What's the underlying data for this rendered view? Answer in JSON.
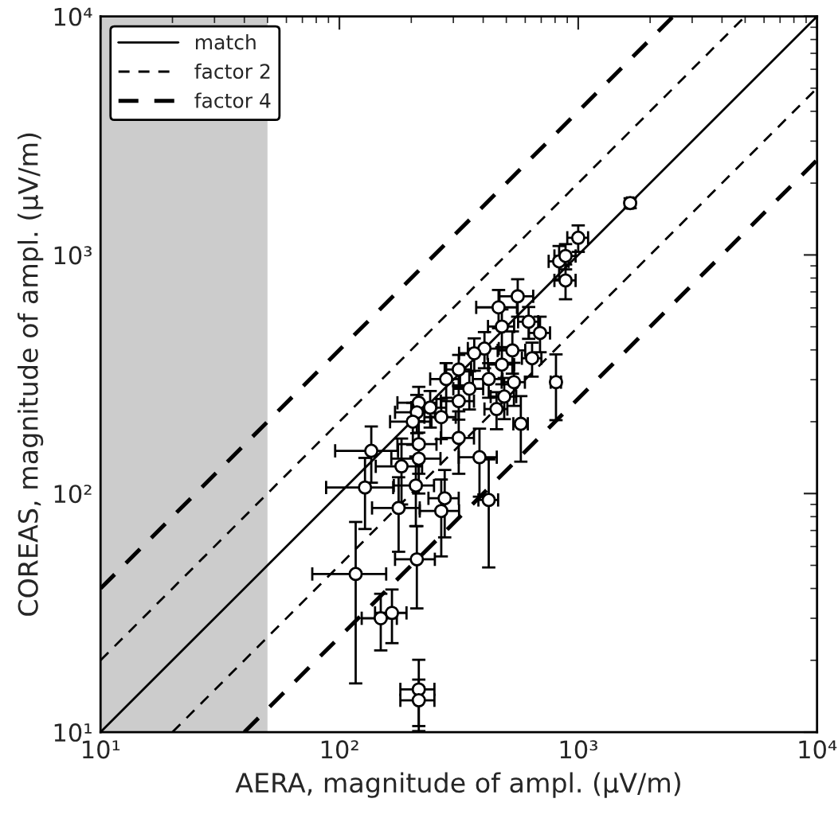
{
  "chart_data": {
    "type": "scatter",
    "xlabel": "AERA, magnitude of ampl. (µV/m)",
    "ylabel": "COREAS, magnitude of ampl. (µV/m)",
    "xlim": [
      10,
      10000
    ],
    "ylim": [
      10,
      10000
    ],
    "log": "xy",
    "xticks": [
      {
        "value": 10,
        "label": "10¹"
      },
      {
        "value": 100,
        "label": "10²"
      },
      {
        "value": 1000,
        "label": "10³"
      },
      {
        "value": 10000,
        "label": "10⁴"
      }
    ],
    "yticks": [
      {
        "value": 10,
        "label": "10¹"
      },
      {
        "value": 100,
        "label": "10²"
      },
      {
        "value": 1000,
        "label": "10³"
      },
      {
        "value": 10000,
        "label": "10⁴"
      }
    ],
    "legend": "top left",
    "grid": false,
    "bands": [
      {
        "axis": "x",
        "from": 10,
        "to": 50,
        "color": "#cccccc"
      }
    ],
    "series": [
      {
        "name": "match",
        "type": "line",
        "color": "#000000",
        "line_style": "solid",
        "x": [
          10,
          10000
        ],
        "values": [
          10,
          10000
        ]
      },
      {
        "name": "factor 2",
        "type": "line",
        "color": "#000000",
        "line_style": "dashed",
        "x": [
          10,
          5000
        ],
        "values": [
          20,
          10000
        ]
      },
      {
        "type": "line",
        "color": "#000000",
        "line_style": "dashed",
        "x": [
          20,
          10000
        ],
        "values": [
          10,
          5000
        ]
      },
      {
        "name": "factor 4",
        "type": "line",
        "color": "#000000",
        "line_style": "dashed",
        "x": [
          10,
          2500
        ],
        "values": [
          40,
          10000
        ]
      },
      {
        "type": "line",
        "color": "#000000",
        "line_style": "dashed",
        "x": [
          40,
          10000
        ],
        "values": [
          10,
          2500
        ]
      },
      {
        "color": "#000000",
        "marker": "circle",
        "x": [
          1650,
          1000,
          832,
          885,
          885,
          692,
          641,
          807,
          620,
          558,
          464,
          479,
          405,
          530,
          479,
          367,
          280,
          316,
          422,
          538,
          350,
          215,
          490,
          455,
          211,
          316,
          240,
          267,
          575,
          203,
          136,
          215,
          316,
          386,
          182,
          215,
          209,
          128,
          276,
          422,
          177,
          267,
          211,
          117,
          149,
          166,
          215,
          215
        ],
        "values": [
          1650,
          1180,
          940,
          990,
          782,
          471,
          369,
          293,
          525,
          671,
          603,
          501,
          405,
          398,
          347,
          387,
          302,
          331,
          302,
          293,
          275,
          240,
          255,
          226,
          219,
          244,
          229,
          209,
          196,
          200,
          151,
          161,
          171,
          142,
          130,
          140,
          108,
          106,
          95.5,
          94,
          87,
          84.5,
          53,
          46,
          30,
          31.6,
          15.1,
          13.6
        ],
        "xerrors": [
          50,
          100,
          80,
          90,
          90,
          70,
          60,
          40,
          60,
          90,
          90,
          60,
          60,
          70,
          60,
          50,
          40,
          40,
          60,
          60,
          50,
          40,
          60,
          50,
          40,
          50,
          40,
          40,
          40,
          40,
          40,
          40,
          50,
          70,
          40,
          50,
          40,
          40,
          40,
          40,
          40,
          50,
          40,
          40,
          25,
          25,
          35,
          35
        ],
        "errors": [
          80,
          150,
          150,
          120,
          130,
          80,
          60,
          90,
          80,
          120,
          110,
          90,
          70,
          80,
          60,
          60,
          50,
          50,
          50,
          60,
          50,
          40,
          50,
          40,
          40,
          40,
          40,
          40,
          60,
          40,
          40,
          40,
          50,
          45,
          40,
          40,
          35,
          35,
          30,
          45,
          30,
          30,
          20,
          30,
          8,
          8,
          5,
          3
        ]
      }
    ]
  }
}
